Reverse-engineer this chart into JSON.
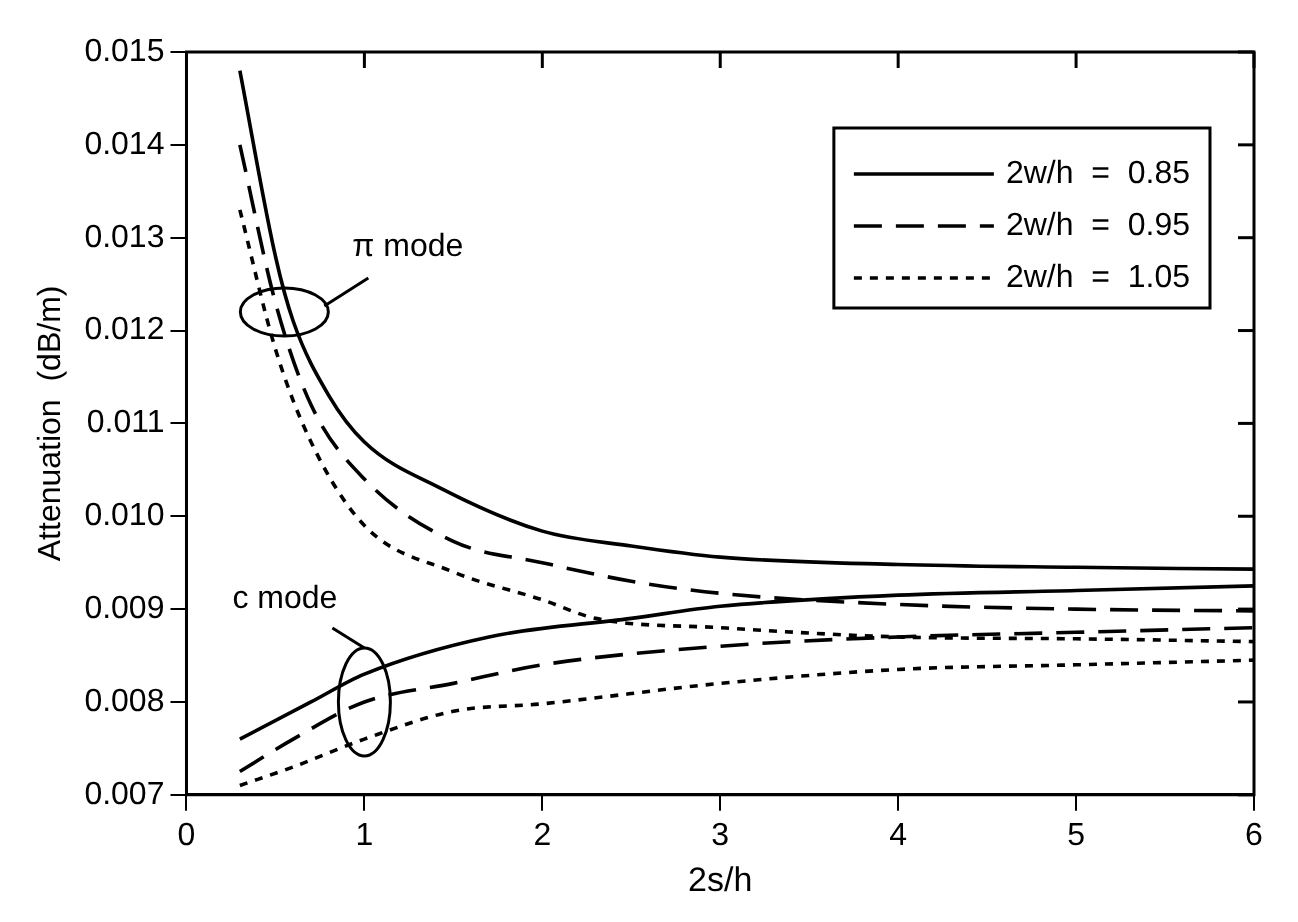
{
  "chart_data": {
    "type": "line",
    "xlabel": "2s/h",
    "ylabel": "Attenuation  (dB/m)",
    "xlim": [
      0,
      6
    ],
    "xticks": [
      0,
      1,
      2,
      3,
      4,
      5,
      6
    ],
    "ylim": [
      0.007,
      0.015
    ],
    "yticks": [
      {
        "value": 0.007,
        "label": "0.007"
      },
      {
        "value": 0.008,
        "label": "0.008"
      },
      {
        "value": 0.009,
        "label": "0.009"
      },
      {
        "value": 0.01,
        "label": "0.010"
      },
      {
        "value": 0.011,
        "label": "0.011"
      },
      {
        "value": 0.012,
        "label": "0.012"
      },
      {
        "value": 0.013,
        "label": "0.013"
      },
      {
        "value": 0.014,
        "label": "0.014"
      },
      {
        "value": 0.015,
        "label": "0.015"
      }
    ],
    "grid": false,
    "legend": "top right",
    "marker": "none",
    "annotations": [
      {
        "text": "π mode",
        "x": 0.55,
        "y": 0.0122
      },
      {
        "text": "c mode",
        "x": 1.0,
        "y": 0.008
      }
    ],
    "series": [
      {
        "name": "2w/h  =  0.85",
        "color": "#000000",
        "line_style": "solid",
        "x": [
          0.3,
          0.5,
          0.6,
          0.8,
          1.0,
          1.43,
          2,
          2.5,
          3,
          4,
          5,
          6
        ],
        "values": [
          0.0148,
          0.0128,
          0.0121,
          0.0113,
          0.0108,
          0.0103,
          0.00984,
          0.00968,
          0.00956,
          0.00948,
          0.00945,
          0.00943
        ]
      },
      {
        "name": "2w/h  =  0.95",
        "color": "#000000",
        "line_style": "dashed",
        "x": [
          0.3,
          0.5,
          0.7,
          1.0,
          1.5,
          2,
          2.5,
          3,
          4,
          5,
          6
        ],
        "values": [
          0.014,
          0.0123,
          0.0112,
          0.0104,
          0.00973,
          0.0095,
          0.0093,
          0.00917,
          0.00905,
          0.009,
          0.00898
        ]
      },
      {
        "name": "2w/h  =  1.05",
        "color": "#000000",
        "line_style": "dotted",
        "x": [
          0.3,
          0.5,
          0.7,
          1.0,
          1.5,
          2,
          2.3,
          3,
          4,
          5,
          6
        ],
        "values": [
          0.0133,
          0.0118,
          0.0108,
          0.0099,
          0.0094,
          0.0091,
          0.0089,
          0.0088,
          0.0087,
          0.00868,
          0.00865
        ]
      },
      {
        "color": "#000000",
        "line_style": "solid",
        "x": [
          0.3,
          0.7,
          1.0,
          1.7,
          2.5,
          3,
          4,
          5,
          6
        ],
        "values": [
          0.0076,
          0.008,
          0.0083,
          0.0087,
          0.0089,
          0.00903,
          0.00915,
          0.0092,
          0.00925
        ]
      },
      {
        "color": "#000000",
        "line_style": "dashed",
        "x": [
          0.3,
          0.6,
          1.0,
          1.5,
          2,
          3,
          4,
          5,
          6
        ],
        "values": [
          0.00725,
          0.0076,
          0.008,
          0.0082,
          0.0084,
          0.0086,
          0.0087,
          0.00875,
          0.0088
        ]
      },
      {
        "color": "#000000",
        "line_style": "dotted",
        "x": [
          0.3,
          0.6,
          1.0,
          1.5,
          2,
          3,
          4,
          5,
          6
        ],
        "values": [
          0.0071,
          0.0073,
          0.0076,
          0.0079,
          0.00798,
          0.0082,
          0.00835,
          0.0084,
          0.00845
        ]
      }
    ]
  }
}
